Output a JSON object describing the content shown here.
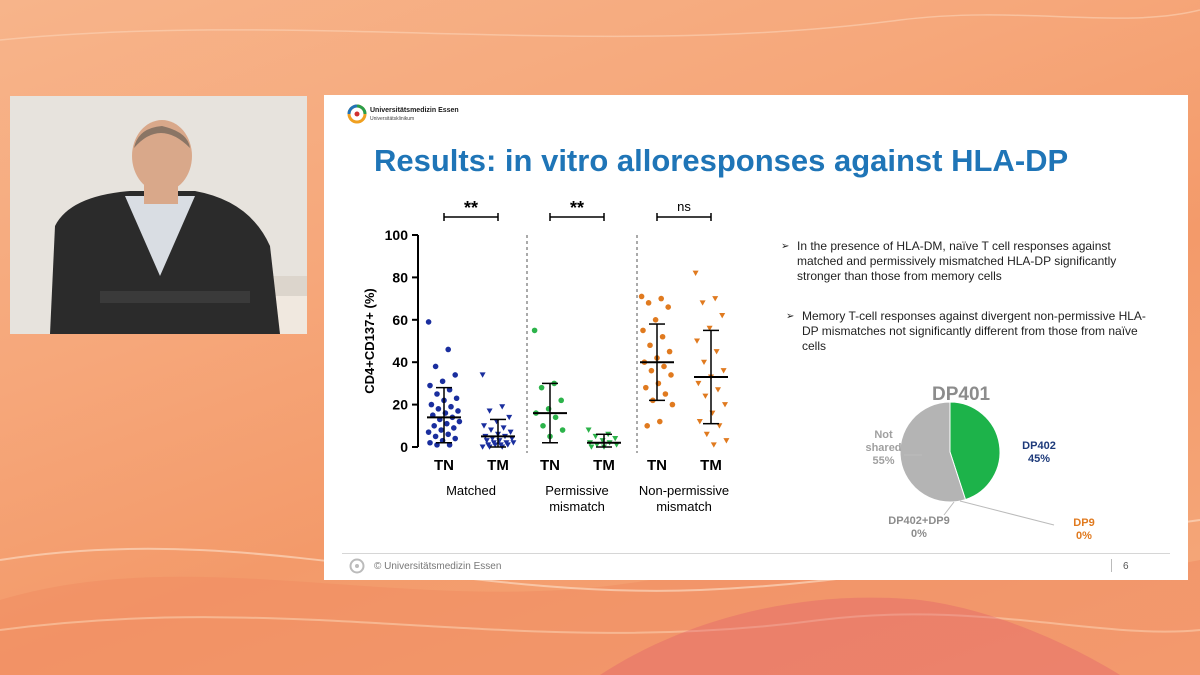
{
  "slide": {
    "logo_name": "Universitätsmedizin Essen",
    "logo_sub": "Universitätsklinikum",
    "title": "Results: in vitro alloresponses against HLA-DP",
    "bullets": [
      {
        "text_lines": [
          "In the presence of HLA-DM, naïve T cell responses against",
          "matched and permissively mismatched HLA-DP significantly",
          "stronger than those from memory cells"
        ]
      },
      {
        "text_lines": [
          "Memory T-cell responses against divergent non-permissive HLA-",
          "DP mismatches not significantly different from those from naïve",
          "cells"
        ]
      }
    ],
    "footer": "© Universitätsmedizin Essen",
    "page_number": "6"
  },
  "chart_data": [
    {
      "type": "scatter",
      "ylabel": "CD4+CD137+ (%)",
      "ylim": [
        0,
        100
      ],
      "yticks": [
        0,
        20,
        40,
        60,
        80,
        100
      ],
      "groups": [
        {
          "name": "Matched",
          "significance": "**",
          "colors": "#1a2e9e",
          "series": [
            {
              "name": "TN",
              "marker": "circle",
              "mean": 14,
              "sd_low": 2,
              "sd_high": 28,
              "values": [
                59,
                46,
                38,
                34,
                31,
                29,
                27,
                25,
                23,
                22,
                20,
                19,
                18,
                17,
                16,
                15,
                14,
                13,
                12,
                11,
                10,
                9,
                8,
                7,
                6,
                5,
                4,
                3,
                2,
                1,
                1
              ]
            },
            {
              "name": "TM",
              "marker": "triangle-down",
              "mean": 5,
              "sd_low": 0,
              "sd_high": 13,
              "values": [
                34,
                19,
                17,
                14,
                12,
                10,
                9,
                8,
                7,
                6,
                5,
                5,
                4,
                4,
                3,
                3,
                2,
                2,
                2,
                1,
                1,
                1,
                1,
                0,
                0,
                0
              ]
            }
          ]
        },
        {
          "name": "Permissive mismatch",
          "significance": "**",
          "colors": "#2cb34a",
          "series": [
            {
              "name": "TN",
              "marker": "circle",
              "mean": 16,
              "sd_low": 2,
              "sd_high": 30,
              "values": [
                55,
                30,
                28,
                22,
                18,
                16,
                14,
                10,
                8,
                5
              ]
            },
            {
              "name": "TM",
              "marker": "triangle-down",
              "mean": 2,
              "sd_low": 0,
              "sd_high": 6,
              "values": [
                8,
                6,
                5,
                4,
                3,
                2,
                2,
                1,
                1,
                0,
                0
              ]
            }
          ]
        },
        {
          "name": "Non-permissive mismatch",
          "significance": "ns",
          "colors": "#e07a1f",
          "series": [
            {
              "name": "TN",
              "marker": "circle",
              "mean": 40,
              "sd_low": 22,
              "sd_high": 58,
              "values": [
                71,
                70,
                68,
                66,
                60,
                55,
                52,
                48,
                45,
                42,
                40,
                38,
                36,
                34,
                30,
                28,
                25,
                22,
                20,
                12,
                10
              ]
            },
            {
              "name": "TM",
              "marker": "triangle-down",
              "mean": 33,
              "sd_low": 11,
              "sd_high": 55,
              "values": [
                82,
                70,
                68,
                62,
                56,
                50,
                45,
                40,
                36,
                33,
                30,
                27,
                24,
                20,
                16,
                12,
                10,
                6,
                3,
                1
              ]
            }
          ]
        }
      ],
      "group_labels": [
        "Matched",
        "Permissive\nmismatch",
        "Non-permissive\nmismatch"
      ]
    },
    {
      "type": "pie",
      "title": "DP401",
      "slices": [
        {
          "label": "DP402",
          "value": 45,
          "value_label": "45%",
          "color": "#1db34a",
          "label_color": "#1d3a7a"
        },
        {
          "label": "DP9",
          "value": 0,
          "value_label": "0%",
          "color": "#e07a1f",
          "label_color": "#e07a1f"
        },
        {
          "label": "DP402+DP9",
          "value": 0,
          "value_label": "0%",
          "color": "#999999",
          "label_color": "#8c8c8c"
        },
        {
          "label": "Not shared",
          "value": 55,
          "value_label": "55%",
          "color": "#b4b4b4",
          "label_color": "#a0a0a0"
        }
      ]
    }
  ]
}
